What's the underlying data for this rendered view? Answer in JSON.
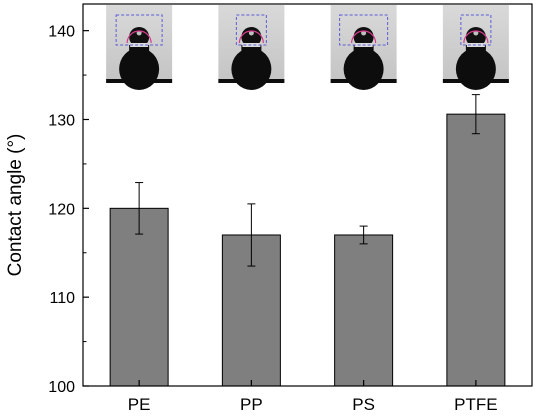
{
  "chart_data": {
    "type": "bar",
    "title": "",
    "xlabel": "",
    "ylabel": "Contact angle (°)",
    "ylim": [
      100,
      143
    ],
    "yticks": [
      100,
      110,
      120,
      130,
      140
    ],
    "categories": [
      "PE",
      "PP",
      "PS",
      "PTFE"
    ],
    "series": [
      {
        "values": [
          120.0,
          117.0,
          117.0,
          130.6
        ],
        "error": [
          2.9,
          3.5,
          1.0,
          2.2
        ]
      }
    ],
    "grid": false,
    "legend": "none",
    "bar_color": "#7f7f7f",
    "bar_edge_color": "#000000",
    "insets": [
      "droplet-image",
      "droplet-image",
      "droplet-image",
      "droplet-image"
    ]
  }
}
